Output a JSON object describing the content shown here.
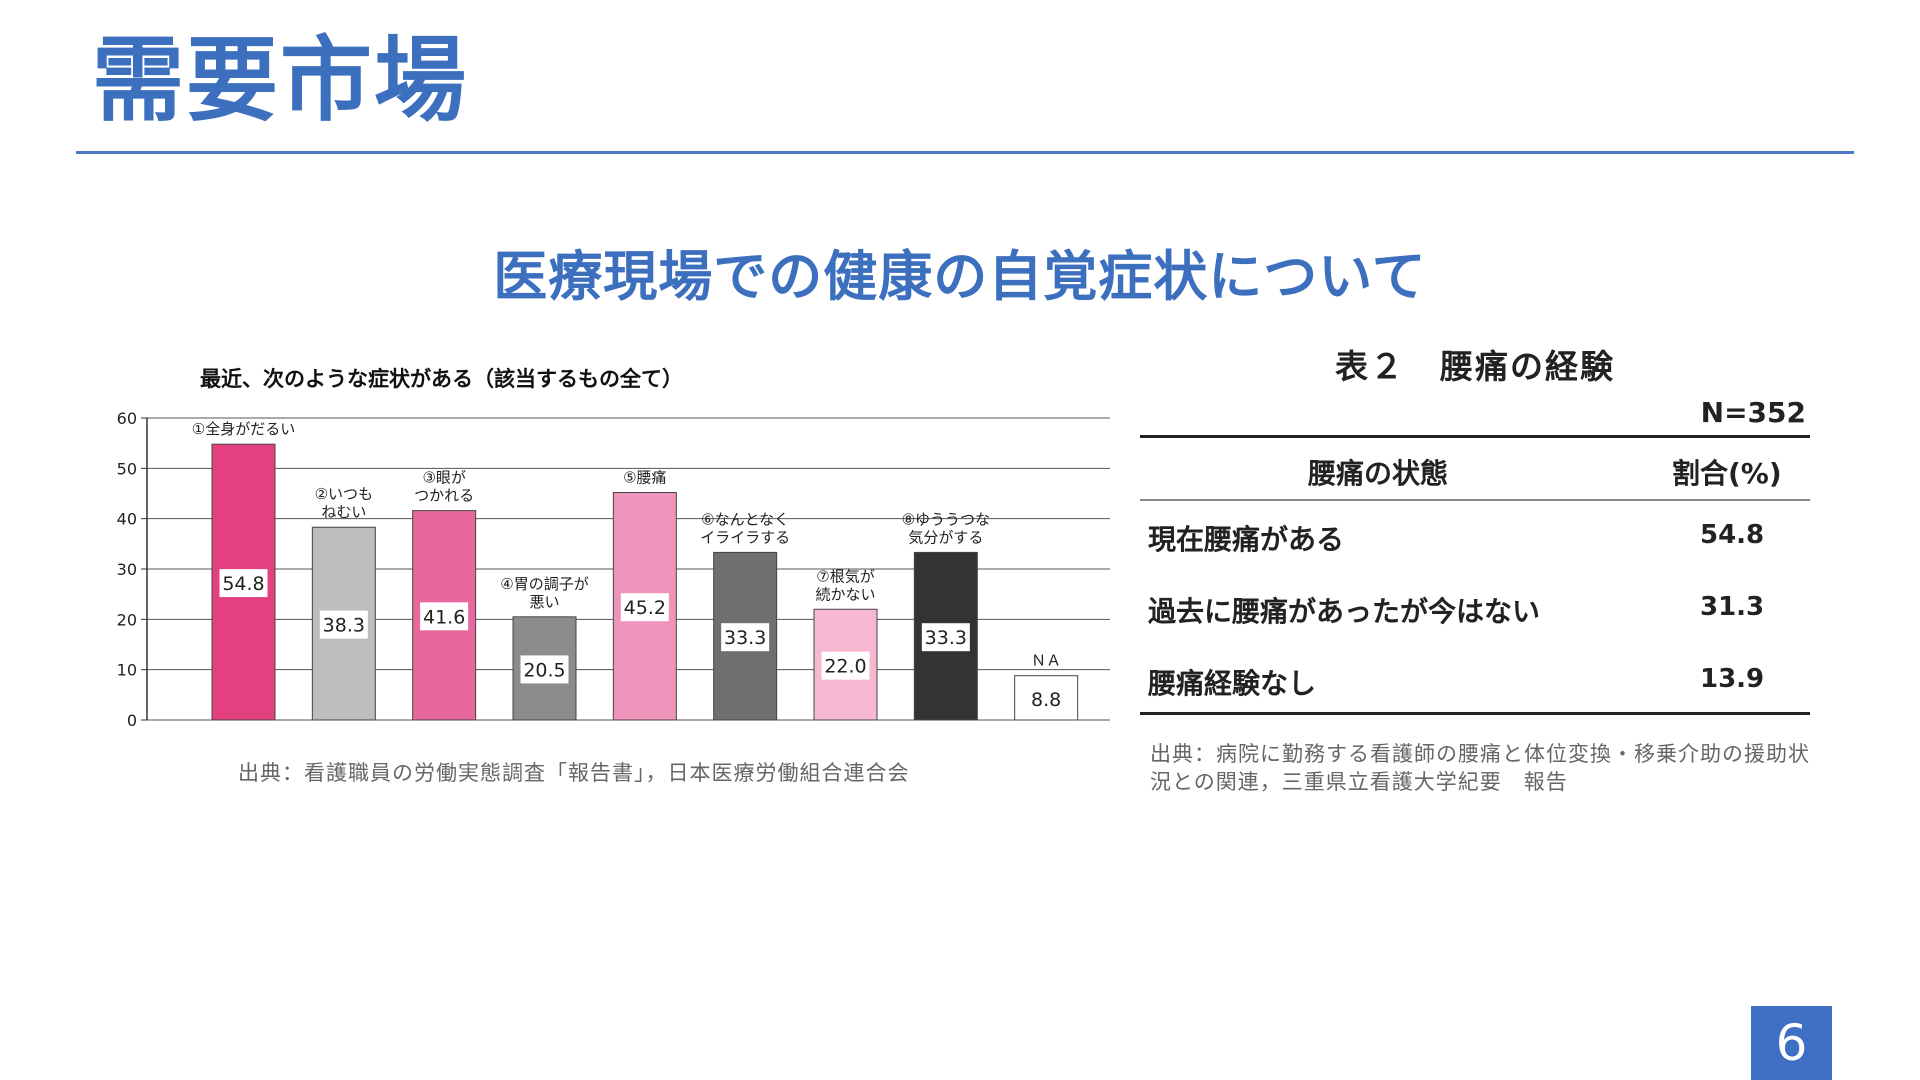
{
  "slide": {
    "title": "需要市場",
    "subtitle": "医療現場での健康の自覚症状について",
    "page_number": "6"
  },
  "left_chart": {
    "source": "出典：看護職員の労働実態調査「報告書」，日本医療労働組合連合会"
  },
  "chart_data": {
    "type": "bar",
    "title": "最近、次のような症状がある（該当するもの全て）",
    "categories": [
      [
        "①全身がだるい"
      ],
      [
        "②いつも",
        "ねむい"
      ],
      [
        "③眼が",
        "つかれる"
      ],
      [
        "④胃の調子が",
        "悪い"
      ],
      [
        "⑤腰痛"
      ],
      [
        "⑥なんとなく",
        "イライラする"
      ],
      [
        "⑦根気が",
        "続かない"
      ],
      [
        "⑧ゆううつな",
        "気分がする"
      ],
      [
        "ＮＡ"
      ]
    ],
    "values": [
      54.8,
      38.3,
      41.6,
      20.5,
      45.2,
      33.3,
      22.0,
      33.3,
      8.8
    ],
    "value_labels": [
      "54.8",
      "38.3",
      "41.6",
      "20.5",
      "45.2",
      "33.3",
      "22.0",
      "33.3",
      "8.8"
    ],
    "colors": [
      "#e2407f",
      "#bdbdbd",
      "#e8679d",
      "#8c8c8c",
      "#ef94ba",
      "#6f6f6f",
      "#f6b8d2",
      "#333333",
      "#ffffff"
    ],
    "ylim": [
      0,
      60
    ],
    "yticks": [
      "0",
      "10",
      "20",
      "30",
      "40",
      "50",
      "60"
    ],
    "grid": true,
    "legend": "none"
  },
  "table": {
    "caption": "表２　腰痛の経験",
    "sample_size": "N=352",
    "headers": [
      "腰痛の状態",
      "割合(%)"
    ],
    "rows": [
      {
        "label": "現在腰痛がある",
        "value": "54.8"
      },
      {
        "label": "過去に腰痛があったが今はない",
        "value": "31.3"
      },
      {
        "label": "腰痛経験なし",
        "value": "13.9"
      }
    ],
    "source": "出典：病院に勤務する看護師の腰痛と体位変換・移乗介助の援助状況との関連，三重県立看護大学紀要　報告"
  }
}
